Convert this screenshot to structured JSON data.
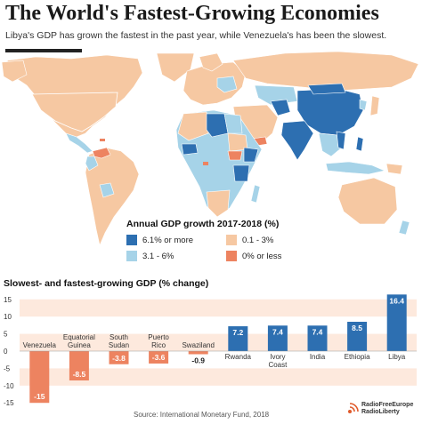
{
  "title": "The World's Fastest-Growing Economies",
  "subtitle": "Libya's GDP has grown the fastest in the past year, while Venezuela's has been the slowest.",
  "colors": {
    "dark_blue": "#2d6fb1",
    "light_blue": "#a6d3e8",
    "light_orange": "#f6c8a2",
    "dark_orange": "#ed8360",
    "bar_positive": "#2d6fb1",
    "bar_negative": "#ed8360",
    "band": "#fde9dd"
  },
  "legend": {
    "title": "Annual GDP growth 2017-2018 (%)",
    "items": [
      {
        "label": "6.1% or more",
        "color": "#2d6fb1"
      },
      {
        "label": "0.1 - 3%",
        "color": "#f6c8a2"
      },
      {
        "label": "3.1 - 6%",
        "color": "#a6d3e8"
      },
      {
        "label": "0% or less",
        "color": "#ed8360"
      }
    ]
  },
  "bar_section_title": "Slowest- and fastest-growing GDP (% change)",
  "chart_data": {
    "type": "bar",
    "categories": [
      "Venezuela",
      "Equatorial\nGuinea",
      "South\nSudan",
      "Puerto\nRico",
      "Swaziland",
      "Rwanda",
      "Ivory\nCoast",
      "India",
      "Ethiopia",
      "Libya"
    ],
    "values": [
      -15,
      -8.5,
      -3.8,
      -3.6,
      -0.9,
      7.2,
      7.4,
      7.4,
      8.5,
      16.4
    ],
    "value_labels": [
      "-15",
      "-8.5",
      "-3.8",
      "-3.6",
      "-0.9",
      "7.2",
      "7.4",
      "7.4",
      "8.5",
      "16.4"
    ],
    "ylim": [
      -17,
      17
    ],
    "yticks": [
      15,
      10,
      5,
      0,
      -5,
      -10,
      -15
    ],
    "ytick_labels": [
      "15",
      "10",
      "5",
      "0",
      "-5",
      "-10",
      "-15"
    ],
    "xlabel": "",
    "ylabel": "",
    "grid": false
  },
  "source": "Source: International Monetary Fund, 2018",
  "logo_text": [
    "RadioFreeEurope",
    "RadioLiberty"
  ]
}
